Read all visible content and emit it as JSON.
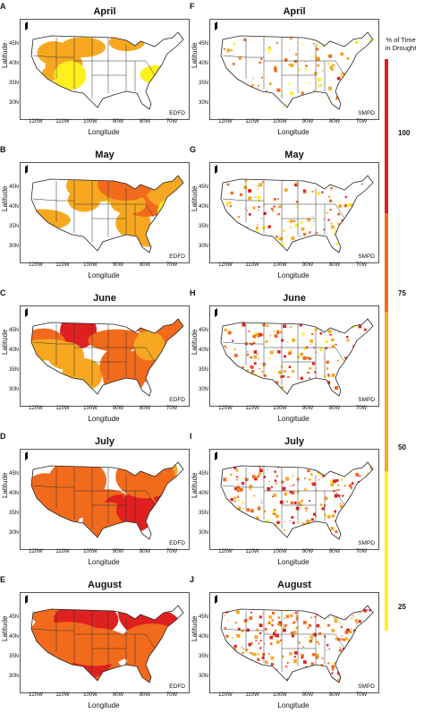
{
  "map_meta": {
    "lat_axis_label": "Latitude",
    "lon_axis_label": "Longitude",
    "lat_ticks": [
      "45N",
      "40N",
      "35N",
      "30N"
    ],
    "lon_ticks": [
      "120W",
      "110W",
      "100W",
      "90W",
      "80W",
      "70W"
    ]
  },
  "legend": {
    "title_line1": "% of Time",
    "title_line2": "in Drought",
    "ticks": [
      "100",
      "75",
      "50",
      "25"
    ],
    "colors": {
      "top": "#e02020",
      "upper_mid": "#f26a1c",
      "mid": "#f7a820",
      "low": "#fff01e"
    }
  },
  "panels": [
    {
      "letter": "A",
      "title": "April",
      "dataset": "EDFD"
    },
    {
      "letter": "F",
      "title": "April",
      "dataset": "SMPD"
    },
    {
      "letter": "B",
      "title": "May",
      "dataset": "EDFD"
    },
    {
      "letter": "G",
      "title": "May",
      "dataset": "SMPD"
    },
    {
      "letter": "C",
      "title": "June",
      "dataset": "EDFD"
    },
    {
      "letter": "H",
      "title": "June",
      "dataset": "SMPD"
    },
    {
      "letter": "D",
      "title": "July",
      "dataset": "EDFD"
    },
    {
      "letter": "I",
      "title": "July",
      "dataset": "SMPD"
    },
    {
      "letter": "E",
      "title": "August",
      "dataset": "EDFD"
    },
    {
      "letter": "J",
      "title": "August",
      "dataset": "SMPD"
    }
  ]
}
